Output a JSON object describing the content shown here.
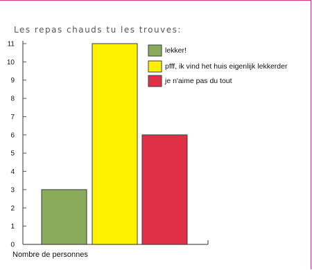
{
  "chart_data": {
    "type": "bar",
    "title": "Les repas chauds tu les trouves:",
    "xlabel": "Nombre de personnes",
    "ylabel": "",
    "ylim": [
      0,
      11
    ],
    "yticks": [
      "0",
      "1",
      "2",
      "3",
      "4",
      "5",
      "6",
      "7",
      "8",
      "9",
      "10",
      "11"
    ],
    "grid": false,
    "legend_position": "top-right",
    "series": [
      {
        "name": "lekker!",
        "value": 3,
        "color": "#8aaa5c"
      },
      {
        "name": "pfff, ik vind het huis eigenlijk lekkerder",
        "value": 11,
        "color": "#fff200"
      },
      {
        "name": "je n'aime pas du tout",
        "value": 6,
        "color": "#e03048"
      }
    ]
  }
}
